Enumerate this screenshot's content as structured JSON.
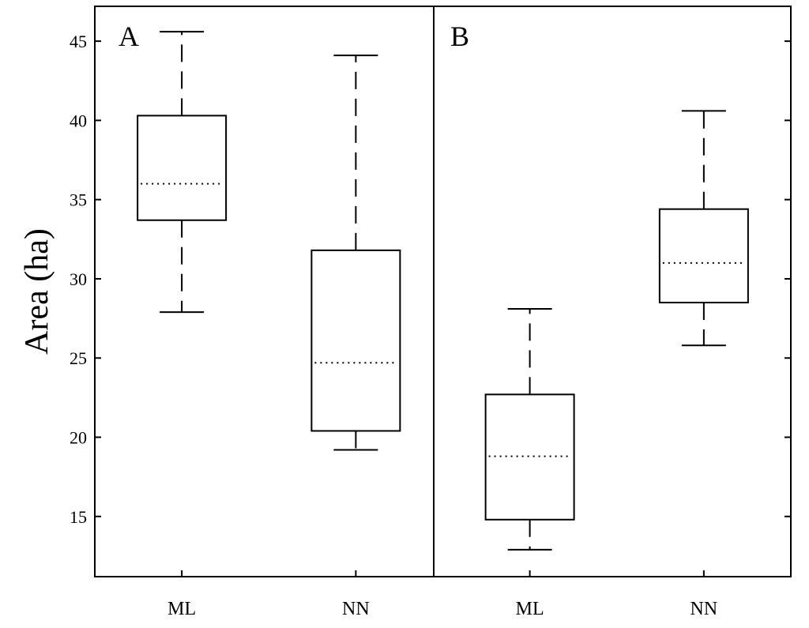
{
  "chart_data": {
    "type": "box",
    "ylabel": "Area (ha)",
    "ylim": [
      11.2,
      47.2
    ],
    "yticks": [
      15,
      20,
      25,
      30,
      35,
      40,
      45
    ],
    "grid": false,
    "panels": [
      {
        "label": "A",
        "categories": [
          "ML",
          "NN"
        ],
        "boxes": [
          {
            "category": "ML",
            "whisker_low": 27.9,
            "q1": 33.7,
            "median": 36.0,
            "q3": 40.3,
            "whisker_high": 45.6
          },
          {
            "category": "NN",
            "whisker_low": 19.2,
            "q1": 20.4,
            "median": 24.7,
            "q3": 31.8,
            "whisker_high": 44.1
          }
        ]
      },
      {
        "label": "B",
        "categories": [
          "ML",
          "NN"
        ],
        "boxes": [
          {
            "category": "ML",
            "whisker_low": 12.9,
            "q1": 14.8,
            "median": 18.8,
            "q3": 22.7,
            "whisker_high": 28.1
          },
          {
            "category": "NN",
            "whisker_low": 25.8,
            "q1": 28.5,
            "median": 31.0,
            "q3": 34.4,
            "whisker_high": 40.6
          }
        ]
      }
    ]
  }
}
